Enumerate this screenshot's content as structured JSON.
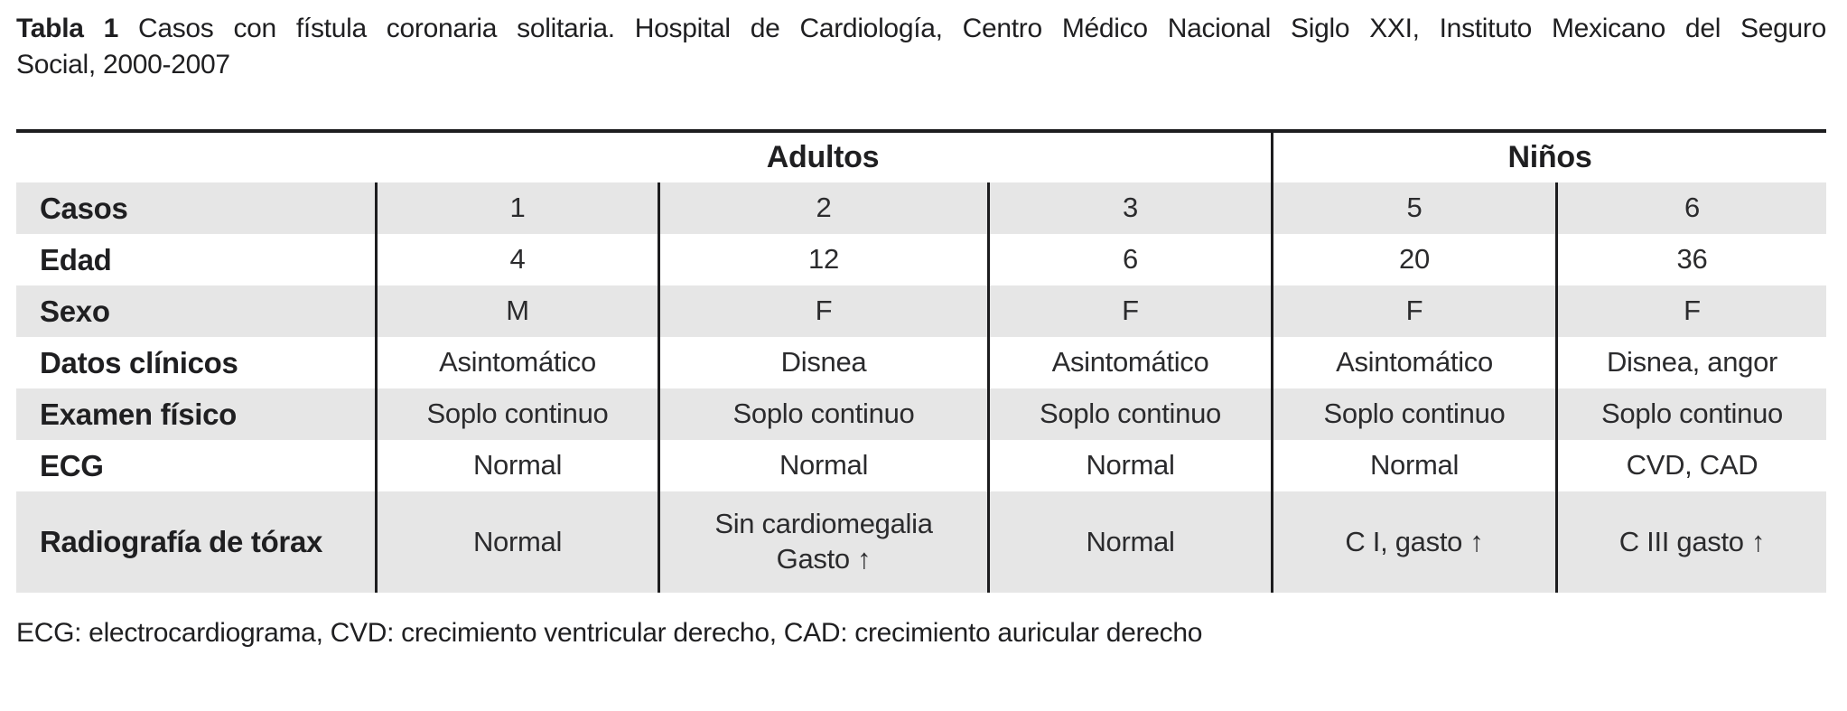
{
  "title": {
    "label": "Tabla 1",
    "line1_rest": "Casos con fístula coronaria solitaria. Hospital de Cardiología, Centro Médico Nacional Siglo XXI, Instituto Mexicano del Seguro",
    "line2": "Social, 2000-2007"
  },
  "table": {
    "groups": [
      {
        "label": "Adultos"
      },
      {
        "label": "Niños"
      }
    ],
    "rows": [
      {
        "label": "Casos",
        "cells": [
          "1",
          "2",
          "3",
          "5",
          "6"
        ]
      },
      {
        "label": "Edad",
        "cells": [
          "4",
          "12",
          "6",
          "20",
          "36"
        ]
      },
      {
        "label": "Sexo",
        "cells": [
          "M",
          "F",
          "F",
          "F",
          "F"
        ]
      },
      {
        "label": "Datos clínicos",
        "cells": [
          "Asintomático",
          "Disnea",
          "Asintomático",
          "Asintomático",
          "Disnea, angor"
        ]
      },
      {
        "label": "Examen físico",
        "cells": [
          "Soplo continuo",
          "Soplo continuo",
          "Soplo continuo",
          "Soplo continuo",
          "Soplo continuo"
        ]
      },
      {
        "label": "ECG",
        "cells": [
          "Normal",
          "Normal",
          "Normal",
          "Normal",
          "CVD, CAD"
        ]
      },
      {
        "label": "Radiografía de tórax",
        "cells": [
          "Normal",
          "Sin cardiomegalia\nGasto ↑",
          "Normal",
          "C I, gasto ↑",
          "C III gasto ↑"
        ]
      }
    ]
  },
  "footnote": "ECG: electrocardiograma, CVD: crecimiento ventricular derecho, CAD: crecimiento auricular derecho",
  "colors": {
    "row_shade": "#e6e6e6",
    "rule": "#1d1d1f",
    "text": "#1f1f21"
  }
}
